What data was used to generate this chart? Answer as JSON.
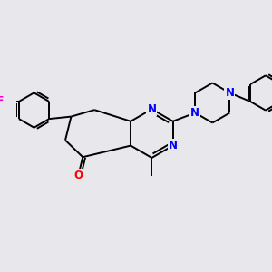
{
  "background_color": "#e8e8ec",
  "bond_color": "#000000",
  "n_color": "#0000ff",
  "o_color": "#ff0000",
  "f_color": "#ff00cc",
  "line_width": 1.4,
  "font_size": 8.5,
  "fig_size": [
    3.0,
    3.0
  ],
  "dpi": 100,
  "xlim": [
    0,
    10
  ],
  "ylim": [
    0,
    10
  ]
}
